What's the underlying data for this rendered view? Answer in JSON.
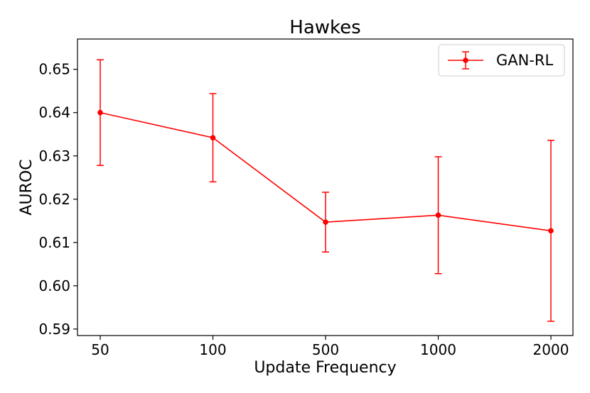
{
  "chart_data": {
    "type": "line",
    "title": "Hawkes",
    "xlabel": "Update Frequency",
    "ylabel": "AUROC",
    "categories": [
      "50",
      "100",
      "500",
      "1000",
      "2000"
    ],
    "ylim": [
      0.5885,
      0.657
    ],
    "yticks": [
      0.59,
      0.6,
      0.61,
      0.62,
      0.63,
      0.64,
      0.65
    ],
    "ytick_labels": [
      "0.59",
      "0.60",
      "0.61",
      "0.62",
      "0.63",
      "0.64",
      "0.65"
    ],
    "grid": false,
    "legend_position": "top-right",
    "series": [
      {
        "name": "GAN-RL",
        "color": "#ff0000",
        "marker": "circle",
        "values": [
          0.64,
          0.6342,
          0.6147,
          0.6163,
          0.6127
        ],
        "error": [
          0.0122,
          0.0102,
          0.0069,
          0.0135,
          0.0209
        ]
      }
    ]
  }
}
